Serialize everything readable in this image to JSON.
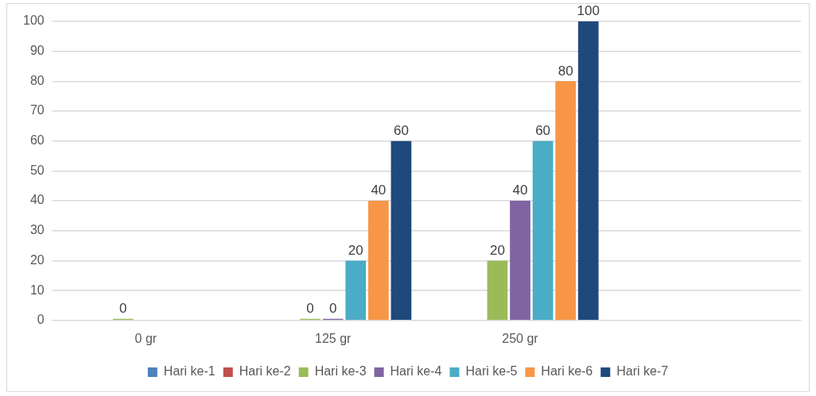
{
  "chart_data": {
    "type": "bar",
    "categories": [
      "0 gr",
      "125 gr",
      "250 gr",
      null
    ],
    "series": [
      {
        "name": "Hari ke-1",
        "color": "#4f81bd",
        "values": [
          null,
          null,
          null,
          null
        ]
      },
      {
        "name": "Hari ke-2",
        "color": "#c0504d",
        "values": [
          null,
          null,
          null,
          null
        ]
      },
      {
        "name": "Hari ke-3",
        "color": "#9bbb59",
        "values": [
          0,
          0,
          20,
          null
        ]
      },
      {
        "name": "Hari ke-4",
        "color": "#8064a2",
        "values": [
          null,
          0,
          40,
          null
        ]
      },
      {
        "name": "Hari ke-5",
        "color": "#4bacc6",
        "values": [
          null,
          20,
          60,
          null
        ]
      },
      {
        "name": "Hari ke-6",
        "color": "#f79646",
        "values": [
          null,
          40,
          80,
          null
        ]
      },
      {
        "name": "Hari ke-7",
        "color": "#1f497d",
        "values": [
          null,
          60,
          100,
          null
        ]
      }
    ],
    "ylim": [
      0,
      100
    ],
    "yticks": [
      0,
      10,
      20,
      30,
      40,
      50,
      60,
      70,
      80,
      90,
      100
    ],
    "grid": "y",
    "legend": "bottom",
    "data_labels": true
  }
}
